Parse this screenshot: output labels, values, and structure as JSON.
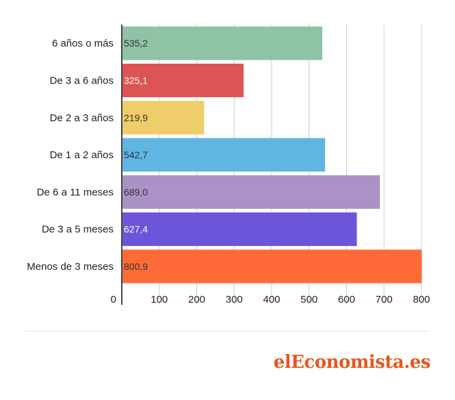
{
  "chart_data": {
    "type": "bar",
    "orientation": "horizontal",
    "categories": [
      "6 años o más",
      "De 3 a 6 años",
      "De 2 a 3 años",
      "De 1 a 2 años",
      "De 6 a 11 meses",
      "De 3 a 5 meses",
      "Menos de 3 meses"
    ],
    "values": [
      535.2,
      325.1,
      219.9,
      542.7,
      689.0,
      627.4,
      800.9
    ],
    "value_labels": [
      "535,2",
      "325,1",
      "219,9",
      "542,7",
      "689,0",
      "627,4",
      "800,9"
    ],
    "bar_colors": [
      "#8fc3a6",
      "#dc5454",
      "#eecd6b",
      "#60b6e2",
      "#aa91c6",
      "#6c55d8",
      "#ff6b38"
    ],
    "value_label_colors": [
      "#333333",
      "#ffffff",
      "#333333",
      "#333333",
      "#333333",
      "#ffffff",
      "#333333"
    ],
    "xlim": [
      0,
      800
    ],
    "xticks": [
      0,
      100,
      200,
      300,
      400,
      500,
      600,
      700,
      800
    ],
    "xtick_labels": [
      "0",
      "100",
      "200",
      "300",
      "400",
      "500",
      "600",
      "700",
      "800"
    ],
    "grid": true,
    "title": "",
    "xlabel": "",
    "ylabel": ""
  },
  "brand": {
    "logo_text": "elEconomista.es",
    "color": "#e8561f"
  }
}
